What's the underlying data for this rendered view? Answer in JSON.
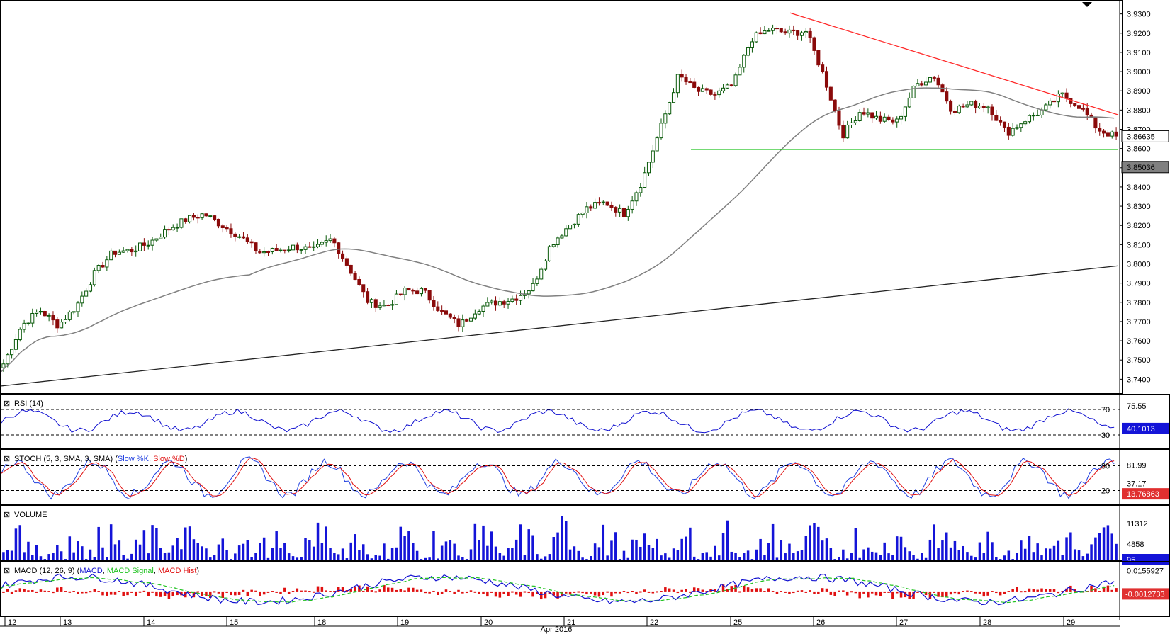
{
  "colors": {
    "background": "#ffffff",
    "candle_up": "#0a5a0a",
    "candle_down": "#8a0a0a",
    "ma": "#808080",
    "support_line": "#22c322",
    "resistance_line": "#ff2a2a",
    "trend_line": "#222222",
    "rsi": "#1010d0",
    "stoch_k": "#1f3fe0",
    "stoch_d": "#e01010",
    "volume": "#1414d8",
    "macd": "#1010d0",
    "macd_signal": "#22c322",
    "macd_hist": "#e01010",
    "current_tag_bg": "#e03030",
    "last_value_bg": "#1414d8"
  },
  "price_panel": {
    "y_ticks": [
      "3.9300",
      "3.9200",
      "3.9100",
      "3.9000",
      "3.8900",
      "3.8800",
      "3.8700",
      "3.8600",
      "3.8500",
      "3.8400",
      "3.8300",
      "3.8200",
      "3.8100",
      "3.8000",
      "3.7900",
      "3.7800",
      "3.7700",
      "3.7600",
      "3.7500",
      "3.7400"
    ],
    "last_price_label": "3.86635",
    "ma_value_label": "3.85036",
    "support_level": 3.8595,
    "resistance_line": {
      "from_price": 3.9305,
      "to_price": 3.8775
    },
    "trend_line": {
      "from_price": 3.7365,
      "to_price": 3.799
    },
    "y_range": [
      3.7335,
      3.9365
    ]
  },
  "rsi_panel": {
    "title": "RSI (14)",
    "levels": [
      {
        "label": "70",
        "value": 70
      },
      {
        "label": "30",
        "value": 30
      }
    ],
    "axis_value": "75.55",
    "last_value": "40.1013",
    "range": [
      10,
      90
    ]
  },
  "stoch_panel": {
    "title": "STOCH (5, 3, SMA, 3, SMA)",
    "legend_k": "Slow %K",
    "legend_d": "Slow %D",
    "levels": [
      {
        "label": "80",
        "value": 80
      },
      {
        "label": "20",
        "value": 20
      }
    ],
    "axis_values": [
      "81.99",
      "37.17"
    ],
    "last_value": "13.76863",
    "range": [
      -10,
      110
    ]
  },
  "volume_panel": {
    "title": "VOLUME",
    "axis_values": [
      "11312",
      "4858"
    ],
    "last_value": "95",
    "max": 16000
  },
  "macd_panel": {
    "title": "MACD (12, 26, 9)",
    "legend_macd": "MACD",
    "legend_signal": "MACD Signal",
    "legend_hist": "MACD Hist",
    "axis_value": "0.0155927",
    "last_value": "-0.0012733",
    "range": [
      -0.017,
      0.02
    ]
  },
  "x_axis": {
    "month_label": "Apr 2016",
    "days": [
      "12",
      "13",
      "14",
      "15",
      "18",
      "19",
      "20",
      "21",
      "22",
      "25",
      "26",
      "27",
      "28",
      "29"
    ]
  },
  "chart_data": {
    "type": "candlestick",
    "symbol_panel_y_range": [
      3.7335,
      3.9365
    ],
    "anchor_closes": [
      3.748,
      3.768,
      3.776,
      3.768,
      3.778,
      3.795,
      3.806,
      3.807,
      3.811,
      3.818,
      3.823,
      3.826,
      3.82,
      3.814,
      3.806,
      3.807,
      3.809,
      3.807,
      3.813,
      3.797,
      3.78,
      3.778,
      3.786,
      3.786,
      3.775,
      3.768,
      3.777,
      3.78,
      3.782,
      3.788,
      3.81,
      3.82,
      3.829,
      3.832,
      3.826,
      3.843,
      3.87,
      3.898,
      3.89,
      3.888,
      3.893,
      3.917,
      3.922,
      3.92,
      3.921,
      3.897,
      3.867,
      3.88,
      3.875,
      3.874,
      3.893,
      3.898,
      3.88,
      3.883,
      3.882,
      3.868,
      3.875,
      3.88,
      3.888,
      3.882,
      3.87,
      3.866
    ],
    "notes_x": "one candle per hour across 14 sessions",
    "series": [
      {
        "name": "Slow %K",
        "values": []
      },
      {
        "name": "Slow %D",
        "values": []
      }
    ]
  }
}
